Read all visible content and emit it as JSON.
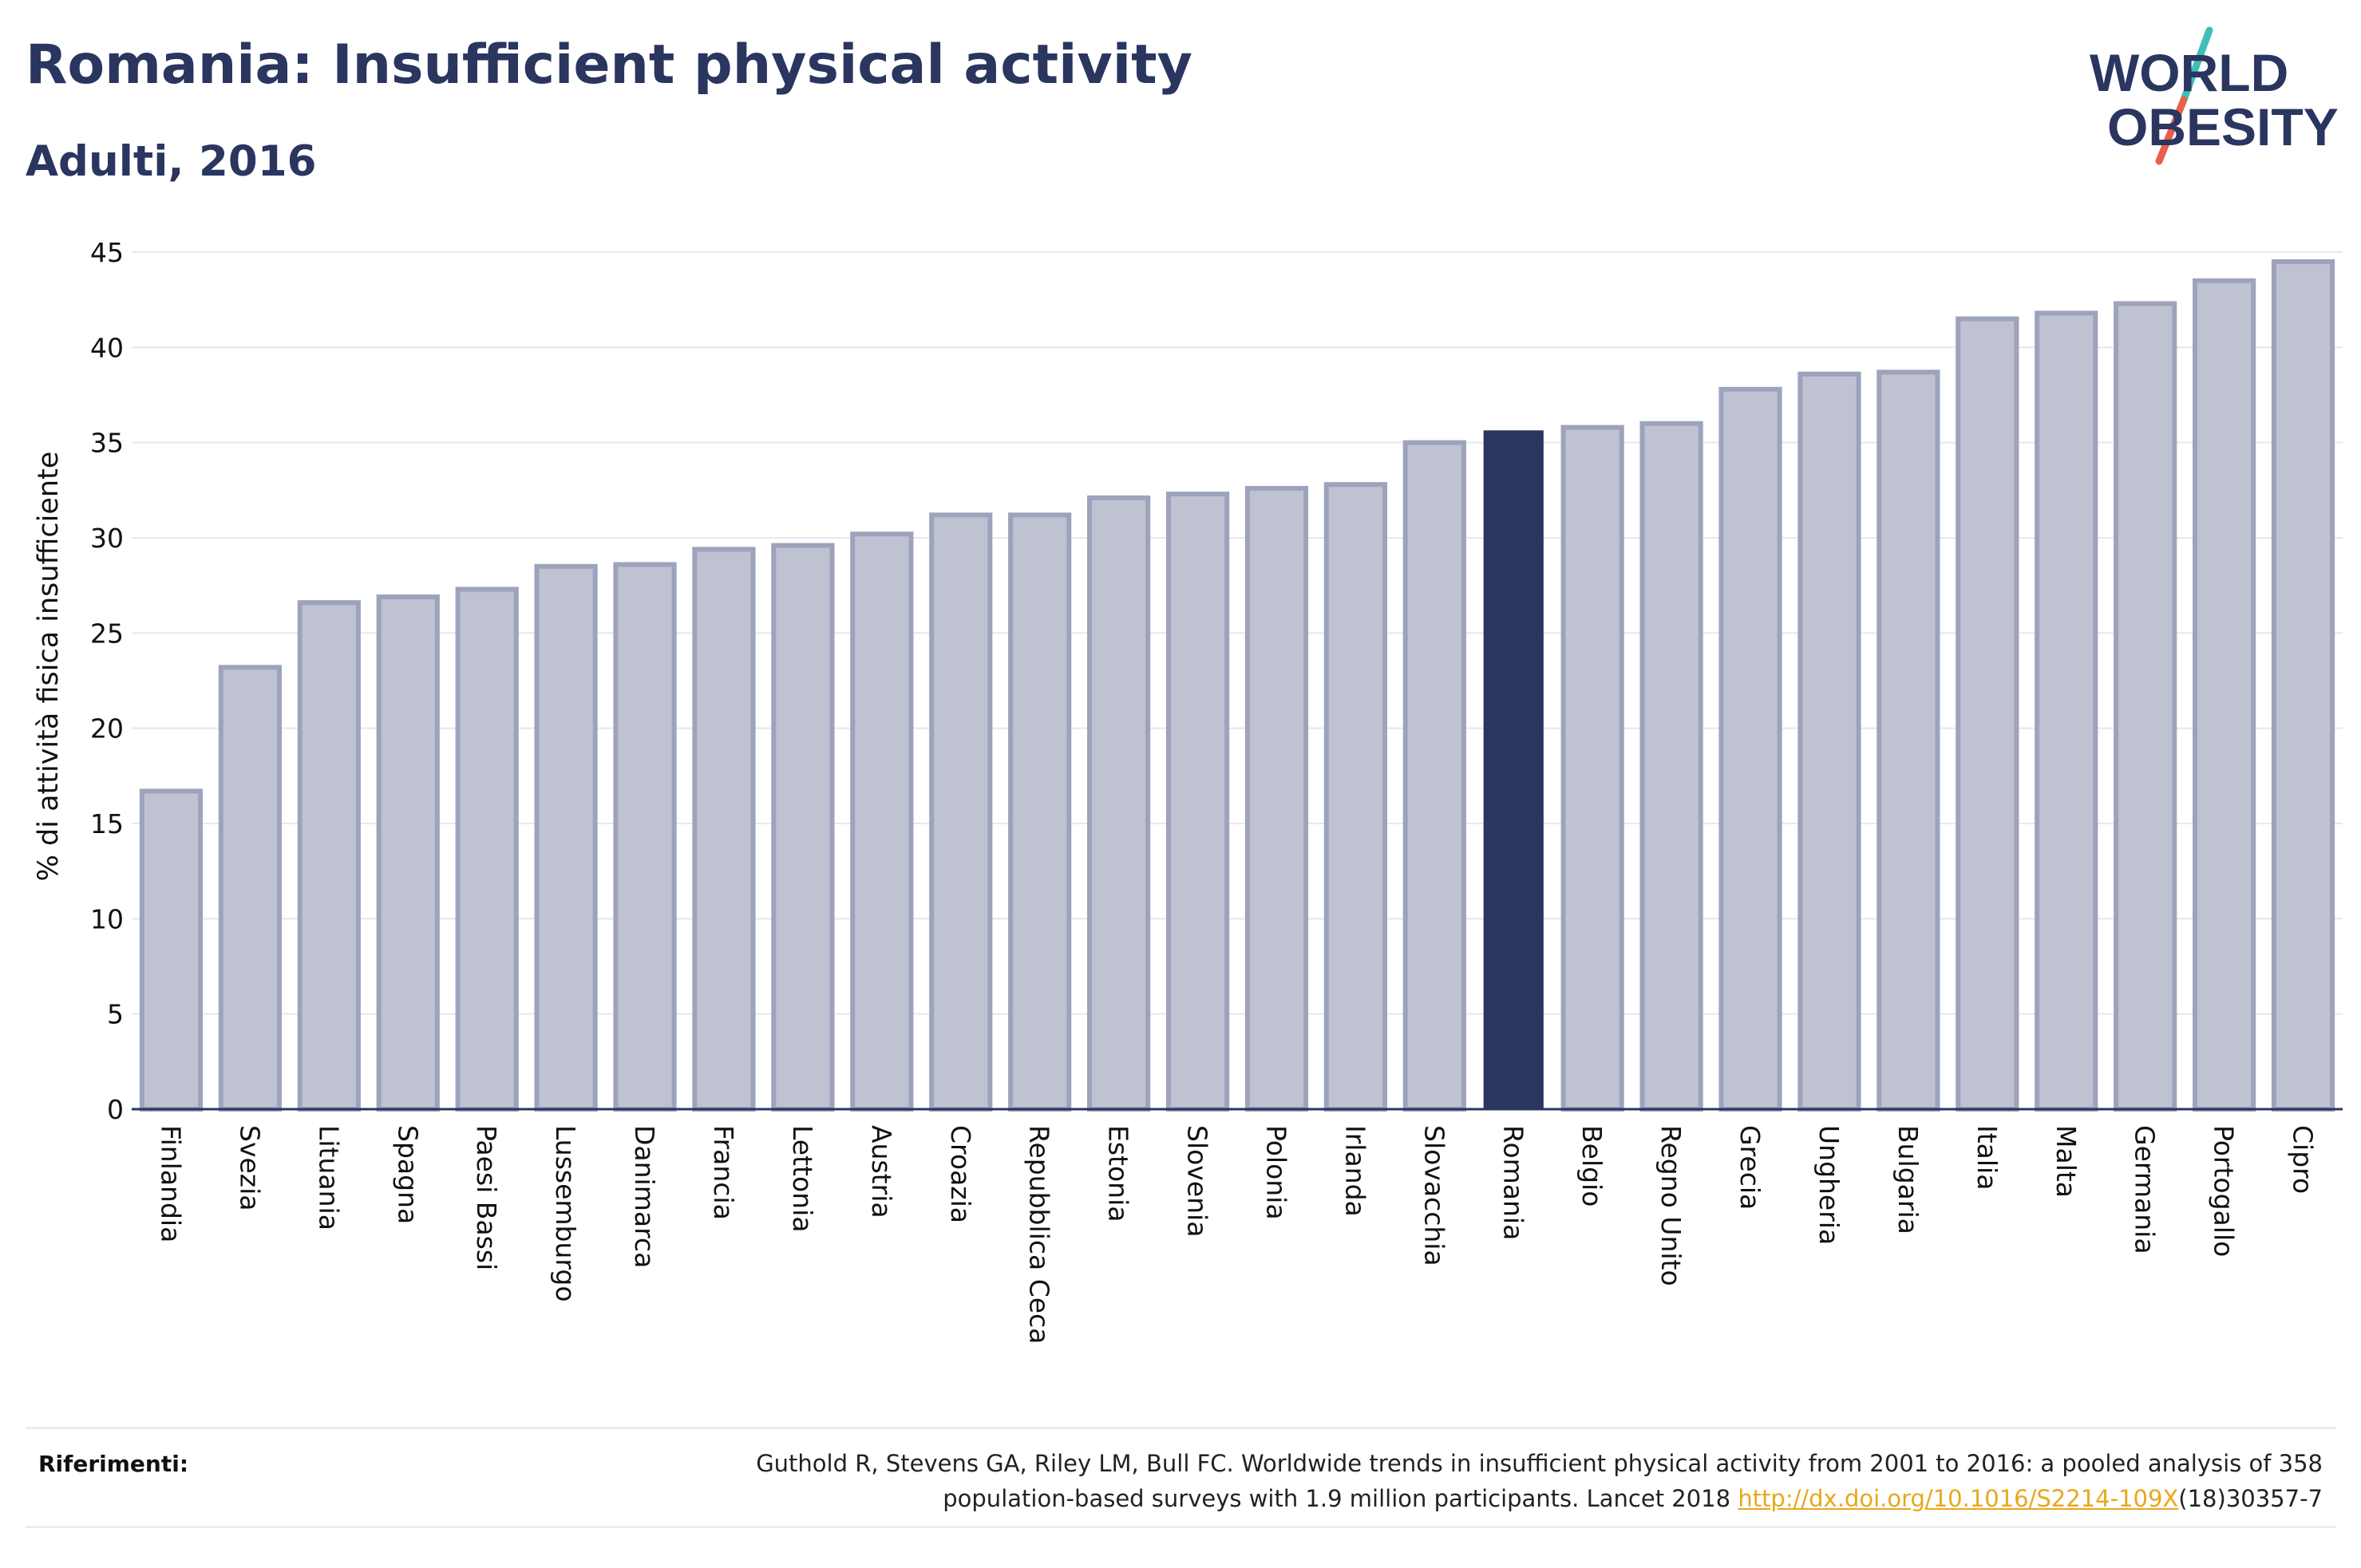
{
  "header": {
    "title": "Romania: Insufficient physical activity",
    "subtitle": "Adulti, 2016"
  },
  "logo": {
    "line1": "WORLD",
    "line2": "OBESITY",
    "colors": {
      "text": "#2a3560",
      "slash_top": "#3fbfb6",
      "slash_bottom": "#e8604c"
    }
  },
  "colors": {
    "bar_fill": "#bfc2d0",
    "bar_stroke": "#9da3bc",
    "highlight": "#2a3560",
    "grid": "#e8e8ec",
    "axis": "#2a3560"
  },
  "chart_data": {
    "type": "bar",
    "ylabel": "% di attività fisica insufficiente",
    "xlabel": "",
    "ylim": [
      0,
      45
    ],
    "yticks": [
      0,
      5,
      10,
      15,
      20,
      25,
      30,
      35,
      40,
      45
    ],
    "grid": true,
    "highlight": "Romania",
    "categories": [
      "Finlandia",
      "Svezia",
      "Lituania",
      "Spagna",
      "Paesi Bassi",
      "Lussemburgo",
      "Danimarca",
      "Francia",
      "Lettonia",
      "Austria",
      "Croazia",
      "Repubblica Ceca",
      "Estonia",
      "Slovenia",
      "Polonia",
      "Irlanda",
      "Slovacchia",
      "Romania",
      "Belgio",
      "Regno Unito",
      "Grecia",
      "Ungheria",
      "Bulgaria",
      "Italia",
      "Malta",
      "Germania",
      "Portogallo",
      "Cipro"
    ],
    "values": [
      16.7,
      23.2,
      26.6,
      26.9,
      27.3,
      28.5,
      28.6,
      29.4,
      29.6,
      30.2,
      31.2,
      31.2,
      32.1,
      32.3,
      32.6,
      32.8,
      35.0,
      35.6,
      35.8,
      36.0,
      37.8,
      38.6,
      38.7,
      41.5,
      41.8,
      42.3,
      43.5,
      44.5
    ]
  },
  "references": {
    "label": "Riferimenti:",
    "line1": "Guthold R, Stevens GA, Riley LM, Bull FC. Worldwide trends in insufficient physical activity from 2001 to 2016: a pooled analysis of 358",
    "line2_prefix": "population-based surveys with 1.9 million participants. Lancet 2018 ",
    "link": "http://dx.doi.org/10.1016/S2214-109X",
    "line2_suffix": "(18)30357-7"
  }
}
